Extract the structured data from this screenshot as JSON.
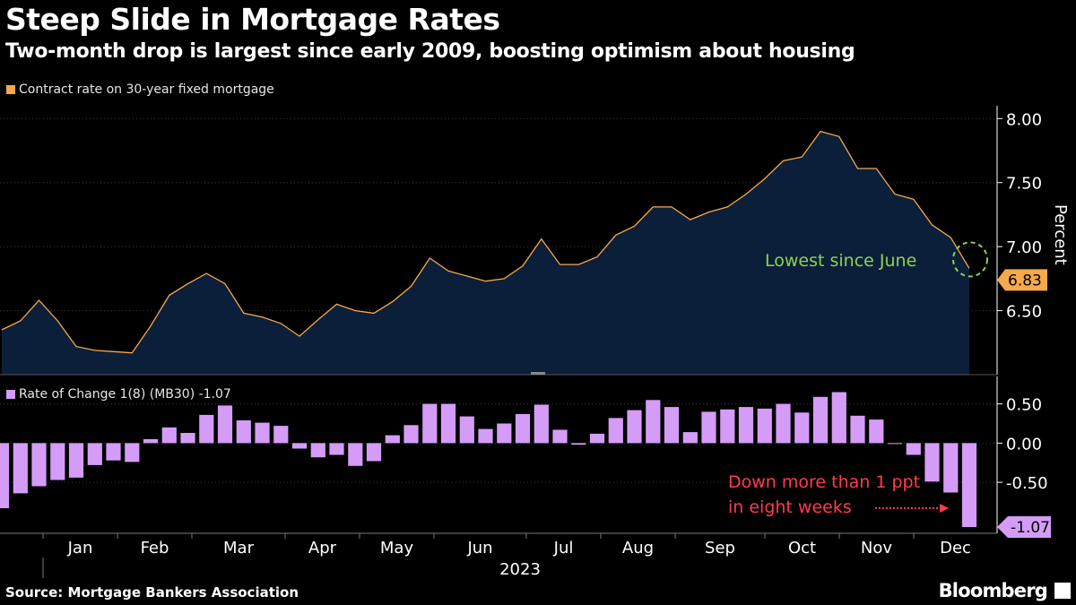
{
  "title": "Steep Slide in Mortgage Rates",
  "subtitle": "Two-month drop is largest since early 2009, boosting optimism about housing",
  "source": "Source: Mortgage Bankers Association",
  "brand": "Bloomberg",
  "colors": {
    "background": "#000000",
    "rate_line": "#f6a94c",
    "rate_area": "#0b1f3a",
    "bars": "#d49cf7",
    "grid": "#3a3a3a",
    "annotation_green": "#8fd14f",
    "annotation_red": "#ff3b4e"
  },
  "chart_data": [
    {
      "type": "area",
      "legend": "Contract rate on 30-year fixed mortgage",
      "ylabel": "Percent",
      "ylim": [
        6.0,
        8.1
      ],
      "yticks": [
        "6.50",
        "7.00",
        "7.50",
        "8.00"
      ],
      "ytick_values": [
        6.5,
        7.0,
        7.5,
        8.0
      ],
      "values": [
        6.35,
        6.42,
        6.58,
        6.42,
        6.22,
        6.19,
        6.18,
        6.17,
        6.38,
        6.62,
        6.71,
        6.79,
        6.71,
        6.48,
        6.45,
        6.4,
        6.3,
        6.43,
        6.55,
        6.5,
        6.48,
        6.57,
        6.69,
        6.91,
        6.81,
        6.77,
        6.73,
        6.75,
        6.85,
        7.06,
        6.86,
        6.86,
        6.92,
        7.09,
        7.16,
        7.31,
        7.31,
        7.21,
        7.27,
        7.31,
        7.41,
        7.53,
        7.67,
        7.7,
        7.9,
        7.86,
        7.61,
        7.61,
        7.41,
        7.37,
        7.17,
        7.07,
        6.83
      ],
      "annotation": "Lowest since June",
      "last_value_label": "6.83"
    },
    {
      "type": "bar",
      "legend": "Rate of Change 1(8) (MB30) -1.07",
      "ylim": [
        -1.15,
        0.85
      ],
      "yticks": [
        "0.50",
        "0.00",
        "-0.50"
      ],
      "ytick_values": [
        0.5,
        0.0,
        -0.5
      ],
      "values": [
        -0.83,
        -0.64,
        -0.55,
        -0.47,
        -0.44,
        -0.28,
        -0.22,
        -0.24,
        0.05,
        0.2,
        0.13,
        0.36,
        0.48,
        0.29,
        0.26,
        0.22,
        -0.07,
        -0.18,
        -0.15,
        -0.29,
        -0.23,
        0.1,
        0.23,
        0.5,
        0.5,
        0.34,
        0.18,
        0.25,
        0.37,
        0.49,
        0.17,
        -0.02,
        0.12,
        0.32,
        0.42,
        0.55,
        0.46,
        0.14,
        0.4,
        0.43,
        0.46,
        0.44,
        0.5,
        0.39,
        0.59,
        0.65,
        0.35,
        0.3,
        0.0,
        -0.15,
        -0.49,
        -0.63,
        -1.07
      ],
      "annotation": "Down more than 1 ppt\nin eight weeks",
      "annotation_line1": "Down more than 1 ppt",
      "annotation_line2": "in eight weeks",
      "last_value_label": "-1.07"
    }
  ],
  "x_axis": {
    "months": [
      "Jan",
      "Feb",
      "Mar",
      "Apr",
      "May",
      "Jun",
      "Jul",
      "Aug",
      "Sep",
      "Oct",
      "Nov",
      "Dec"
    ],
    "year": "2023"
  }
}
